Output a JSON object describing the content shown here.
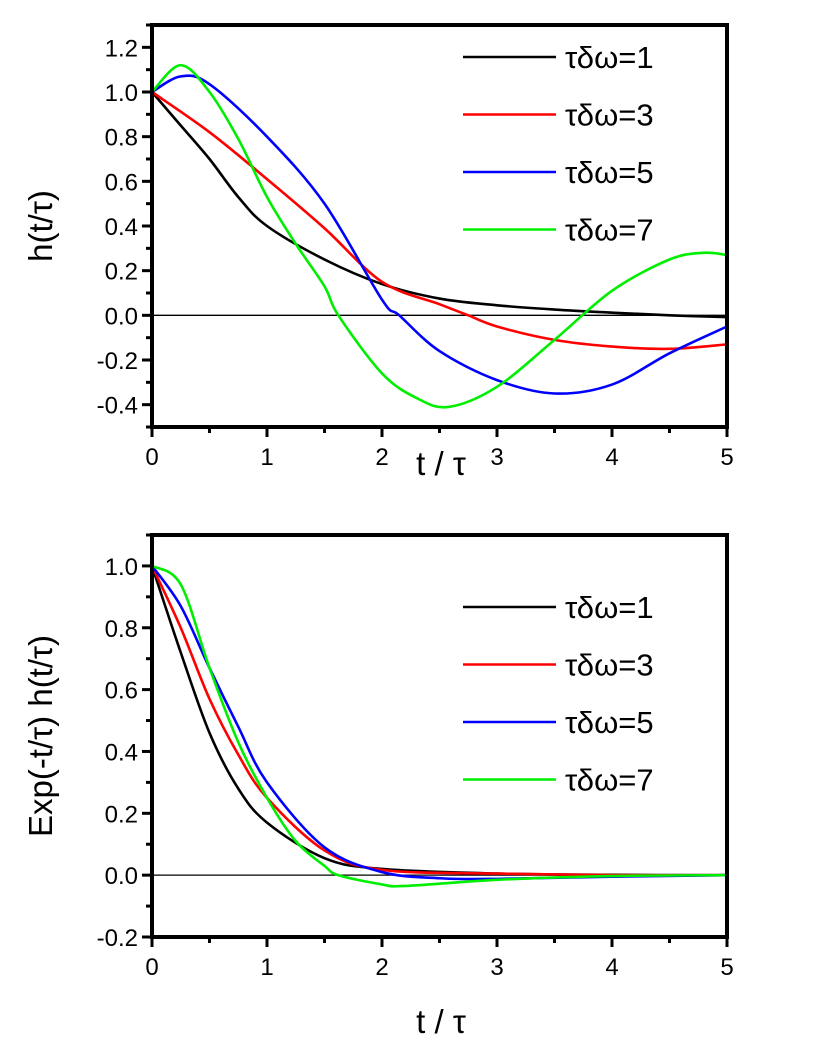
{
  "chart_data": [
    {
      "type": "line",
      "xlabel": "t / τ",
      "ylabel": "h(t/τ)",
      "xlim": [
        0,
        5
      ],
      "ylim": [
        -0.5,
        1.3
      ],
      "xticks": [
        "0",
        "1",
        "2",
        "3",
        "4",
        "5"
      ],
      "yticks": [
        "-0.4",
        "-0.2",
        "0.0",
        "0.2",
        "0.4",
        "0.6",
        "0.8",
        "1.0",
        "1.2"
      ],
      "ytick_values": [
        -0.4,
        -0.2,
        0,
        0.2,
        0.4,
        0.6,
        0.8,
        1.0,
        1.2
      ],
      "zero_line": true,
      "grid": false,
      "legend_position": "top-right",
      "series": [
        {
          "name": "τδω=1",
          "color": "#000000",
          "x": [
            0,
            0.25,
            0.5,
            0.75,
            1,
            1.5,
            2,
            2.5,
            3,
            3.5,
            4,
            4.5,
            5
          ],
          "y": [
            1,
            0.85,
            0.7,
            0.53,
            0.4,
            0.25,
            0.14,
            0.075,
            0.045,
            0.026,
            0.012,
            0,
            -0.008
          ]
        },
        {
          "name": "τδω=3",
          "color": "#ff0000",
          "x": [
            0,
            0.5,
            1,
            1.5,
            2,
            2.5,
            2.75,
            3,
            3.5,
            4,
            4.5,
            5
          ],
          "y": [
            1,
            0.82,
            0.61,
            0.39,
            0.15,
            0.05,
            0,
            -0.05,
            -0.11,
            -0.14,
            -0.15,
            -0.13
          ]
        },
        {
          "name": "τδω=5",
          "color": "#0000ff",
          "x": [
            0,
            0.25,
            0.5,
            1,
            1.5,
            2,
            2.15,
            2.5,
            3,
            3.5,
            4,
            4.5,
            5
          ],
          "y": [
            1,
            1.07,
            1.035,
            0.8,
            0.5,
            0.07,
            0,
            -0.16,
            -0.29,
            -0.35,
            -0.31,
            -0.17,
            -0.05
          ]
        },
        {
          "name": "τδω=7",
          "color": "#00ee00",
          "x": [
            0,
            0.25,
            0.5,
            0.75,
            1,
            1.25,
            1.5,
            1.62,
            2,
            2.3,
            2.58,
            3,
            3.5,
            4,
            4.5,
            4.8,
            5
          ],
          "y": [
            1,
            1.12,
            1.0,
            0.79,
            0.53,
            0.32,
            0.13,
            0,
            -0.26,
            -0.37,
            -0.41,
            -0.32,
            -0.11,
            0.11,
            0.25,
            0.28,
            0.27
          ]
        }
      ]
    },
    {
      "type": "line",
      "xlabel": "t / τ",
      "ylabel": "Exp(-t/τ) h(t/τ)",
      "xlim": [
        0,
        5
      ],
      "ylim": [
        -0.2,
        1.1
      ],
      "xticks": [
        "0",
        "1",
        "2",
        "3",
        "4",
        "5"
      ],
      "yticks": [
        "-0.2",
        "0.0",
        "0.2",
        "0.4",
        "0.6",
        "0.8",
        "1.0"
      ],
      "ytick_values": [
        -0.2,
        0,
        0.2,
        0.4,
        0.6,
        0.8,
        1.0
      ],
      "zero_line": true,
      "grid": false,
      "legend_position": "top-right",
      "series": [
        {
          "name": "τδω=1",
          "color": "#000000",
          "x": [
            0,
            0.25,
            0.5,
            0.75,
            1,
            1.5,
            2,
            3,
            4,
            5
          ],
          "y": [
            1,
            0.72,
            0.46,
            0.28,
            0.17,
            0.055,
            0.02,
            0.005,
            0.001,
            0
          ]
        },
        {
          "name": "τδω=3",
          "color": "#ff0000",
          "x": [
            0,
            0.25,
            0.5,
            0.75,
            1,
            1.5,
            2,
            3,
            4,
            5
          ],
          "y": [
            1,
            0.8,
            0.57,
            0.39,
            0.25,
            0.08,
            0.017,
            0.005,
            0,
            0
          ]
        },
        {
          "name": "τδω=5",
          "color": "#0000ff",
          "x": [
            0,
            0.25,
            0.5,
            0.75,
            1,
            1.5,
            2,
            2.5,
            3,
            4,
            5
          ],
          "y": [
            1,
            0.87,
            0.67,
            0.48,
            0.3,
            0.09,
            0.01,
            -0.01,
            -0.012,
            -0.005,
            0
          ]
        },
        {
          "name": "τδω=7",
          "color": "#00ee00",
          "x": [
            0,
            0.25,
            0.5,
            0.75,
            1,
            1.25,
            1.5,
            1.62,
            2,
            2.2,
            3,
            4,
            5
          ],
          "y": [
            1,
            0.94,
            0.67,
            0.43,
            0.25,
            0.11,
            0.03,
            0,
            -0.03,
            -0.035,
            -0.015,
            -0.003,
            0
          ]
        }
      ]
    }
  ]
}
